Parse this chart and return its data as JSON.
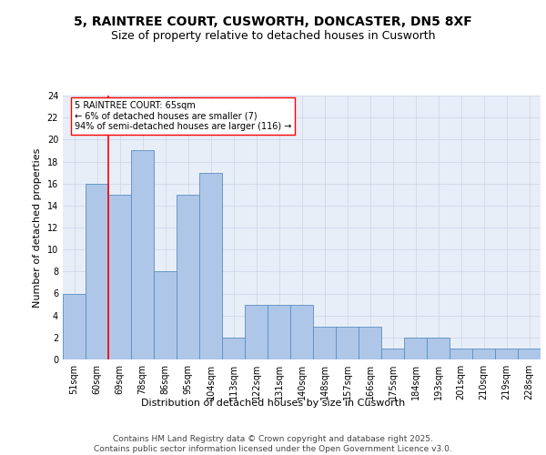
{
  "title1": "5, RAINTREE COURT, CUSWORTH, DONCASTER, DN5 8XF",
  "title2": "Size of property relative to detached houses in Cusworth",
  "xlabel": "Distribution of detached houses by size in Cusworth",
  "ylabel": "Number of detached properties",
  "categories": [
    "51sqm",
    "60sqm",
    "69sqm",
    "78sqm",
    "86sqm",
    "95sqm",
    "104sqm",
    "113sqm",
    "122sqm",
    "131sqm",
    "140sqm",
    "148sqm",
    "157sqm",
    "166sqm",
    "175sqm",
    "184sqm",
    "193sqm",
    "201sqm",
    "210sqm",
    "219sqm",
    "228sqm"
  ],
  "values": [
    6,
    16,
    15,
    19,
    8,
    15,
    17,
    2,
    5,
    5,
    5,
    3,
    3,
    3,
    1,
    2,
    2,
    1,
    1,
    1,
    1
  ],
  "bar_color": "#aec6e8",
  "bar_edge_color": "#5a8fc0",
  "grid_color": "#d0d8e8",
  "background_color": "#e8eef8",
  "annotation_line1": "5 RAINTREE COURT: 65sqm",
  "annotation_line2": "← 6% of detached houses are smaller (7)",
  "annotation_line3": "94% of semi-detached houses are larger (116) →",
  "annotation_box_color": "white",
  "annotation_box_edge_color": "red",
  "vline_x_index": 1.5,
  "vline_color": "red",
  "ylim": [
    0,
    24
  ],
  "yticks": [
    0,
    2,
    4,
    6,
    8,
    10,
    12,
    14,
    16,
    18,
    20,
    22,
    24
  ],
  "footer_text": "Contains HM Land Registry data © Crown copyright and database right 2025.\nContains public sector information licensed under the Open Government Licence v3.0.",
  "title_fontsize": 10,
  "subtitle_fontsize": 9,
  "axis_label_fontsize": 8,
  "tick_fontsize": 7,
  "annotation_fontsize": 7,
  "footer_fontsize": 6.5
}
